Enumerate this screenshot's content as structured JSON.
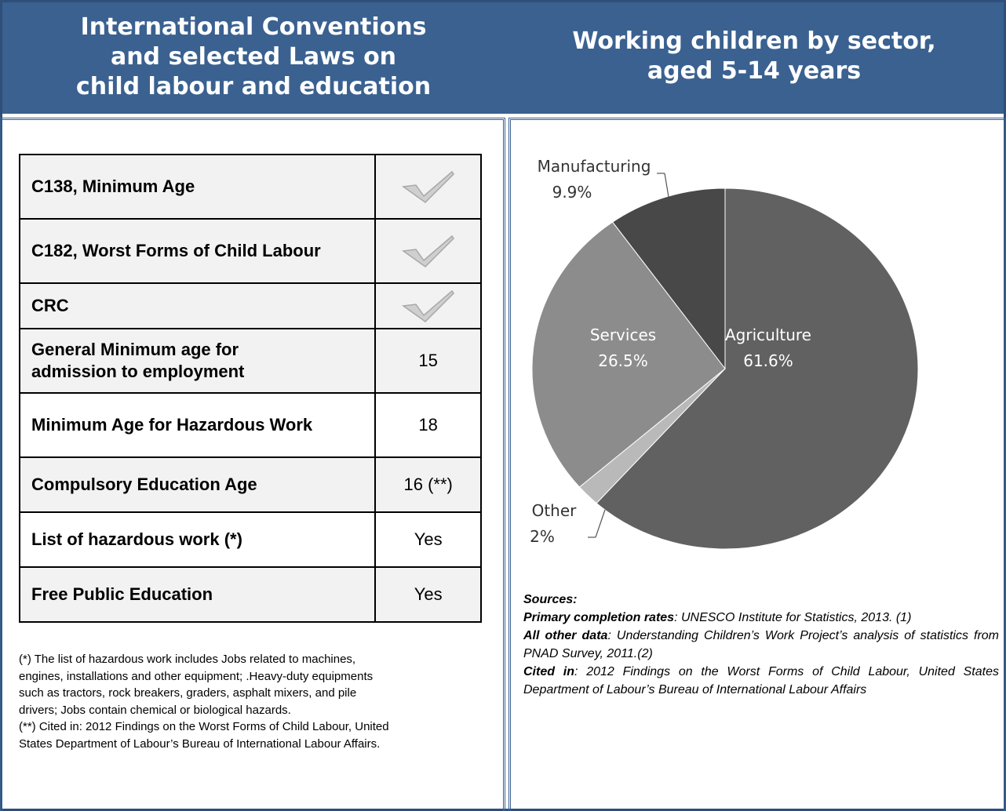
{
  "header": {
    "left_title_lines": [
      "International Conventions",
      "and selected Laws on",
      "child labour and education"
    ],
    "right_title_lines": [
      "Working children by sector,",
      "aged 5-14 years"
    ]
  },
  "laws_table": {
    "rows": [
      {
        "label": "C138, Minimum Age",
        "value": "",
        "check": true
      },
      {
        "label": "C182, Worst Forms of Child Labour",
        "value": "",
        "check": true
      },
      {
        "label": "CRC",
        "value": "",
        "check": true
      },
      {
        "label_lines": [
          "General Minimum age for",
          "admission to employment"
        ],
        "value": "15",
        "check": false
      },
      {
        "label": "Minimum Age for Hazardous Work",
        "value": "18",
        "check": false
      },
      {
        "label": "Compulsory Education Age",
        "value": "16 (**)",
        "check": false
      },
      {
        "label": "List of hazardous work (*)",
        "value": "Yes",
        "check": false
      },
      {
        "label": "Free Public Education",
        "value": "Yes",
        "check": false
      }
    ]
  },
  "footnotes": [
    [
      "(*) The list of hazardous work includes  Jobs related to machines,",
      "engines, installations and other equipment; .Heavy-duty equipments",
      "such as tractors, rock breakers, graders, asphalt mixers, and pile",
      "drivers; Jobs contain chemical or biological hazards."
    ],
    [
      "(**) Cited in: 2012 Findings on the Worst Forms of Child Labour, United",
      "States Department of Labour’s Bureau of International Labour Affairs."
    ]
  ],
  "chart_data": {
    "type": "pie",
    "slices": [
      {
        "name": "Agriculture",
        "label": "61.6%",
        "value": 61.6,
        "color": "#616161"
      },
      {
        "name": "Other",
        "label": "2%",
        "value": 2.0,
        "color": "#b9b9b9"
      },
      {
        "name": "Services",
        "label": "26.5%",
        "value": 26.5,
        "color": "#8c8c8c"
      },
      {
        "name": "Manufacturing",
        "label": "9.9%",
        "value": 9.9,
        "color": "#484848"
      }
    ]
  },
  "sources": {
    "heading": "Sources:",
    "items": [
      {
        "term": "Primary completion rates",
        "text": ": UNESCO Institute for Statistics, 2013. (1)"
      },
      {
        "term": "All other data",
        "text": ": Understanding Children’s Work Project’s analysis of statistics from PNAD Survey, 2011.(2)"
      },
      {
        "term": "Cited in",
        "text": ": 2012 Findings on the Worst Forms of Child Labour, United States Department of Labour’s Bureau of International Labour Affairs"
      }
    ]
  },
  "colors": {
    "header_bg": "#3a6190",
    "border": "#2f4f7a",
    "row_shade": "#f2f2f2"
  }
}
